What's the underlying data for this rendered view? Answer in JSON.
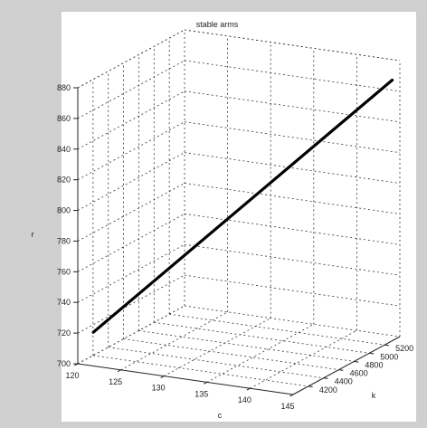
{
  "window": {
    "background": "#cfcfcf",
    "axes_background": "#ffffff"
  },
  "chart_data": {
    "type": "line3d",
    "title": "stable arms",
    "xlabel": "c",
    "ylabel": "k",
    "zlabel": "r",
    "xlim": [
      120,
      145
    ],
    "ylim": [
      4000,
      5400
    ],
    "zlim": [
      700,
      880
    ],
    "x_ticks": [
      "120",
      "125",
      "130",
      "135",
      "140",
      "145"
    ],
    "y_ticks": [
      "4200",
      "4400",
      "4600",
      "4800",
      "5000",
      "5200"
    ],
    "z_ticks": [
      "700",
      "720",
      "740",
      "760",
      "780",
      "800",
      "820",
      "840",
      "860",
      "880"
    ],
    "grid": true,
    "line_color": "#000000",
    "series": [
      {
        "x": [
          121.8,
          145.0
        ],
        "y": [
          4000,
          5300
        ],
        "z": [
          722,
          870
        ]
      }
    ]
  }
}
